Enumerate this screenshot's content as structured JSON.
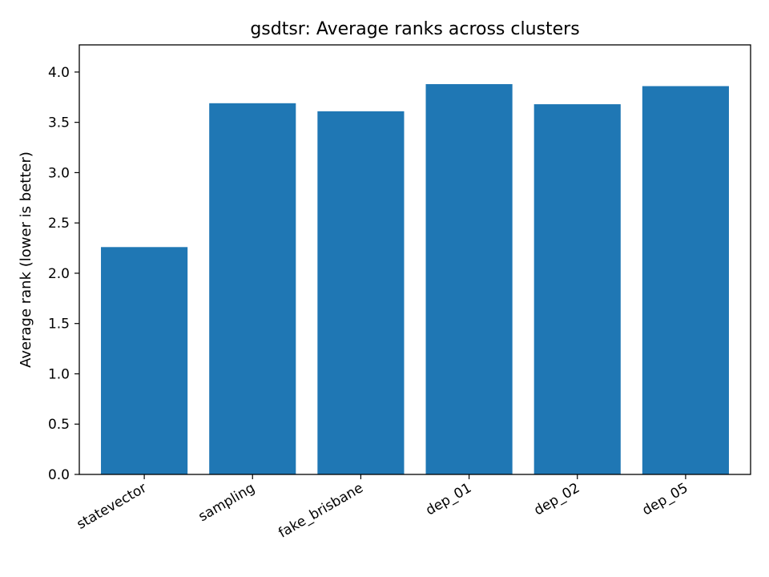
{
  "chart_data": {
    "type": "bar",
    "title": "gsdtsr: Average ranks across clusters",
    "xlabel": "",
    "ylabel": "Average rank (lower is better)",
    "categories": [
      "statevector",
      "sampling",
      "fake_brisbane",
      "dep_01",
      "dep_02",
      "dep_05"
    ],
    "values": [
      2.26,
      3.69,
      3.61,
      3.88,
      3.68,
      3.86
    ],
    "ylim": [
      0,
      4.27
    ],
    "yticks": [
      "0.0",
      "0.5",
      "1.0",
      "1.5",
      "2.0",
      "2.5",
      "3.0",
      "3.5",
      "4.0"
    ],
    "bar_color": "#1f77b4",
    "grid": false
  }
}
